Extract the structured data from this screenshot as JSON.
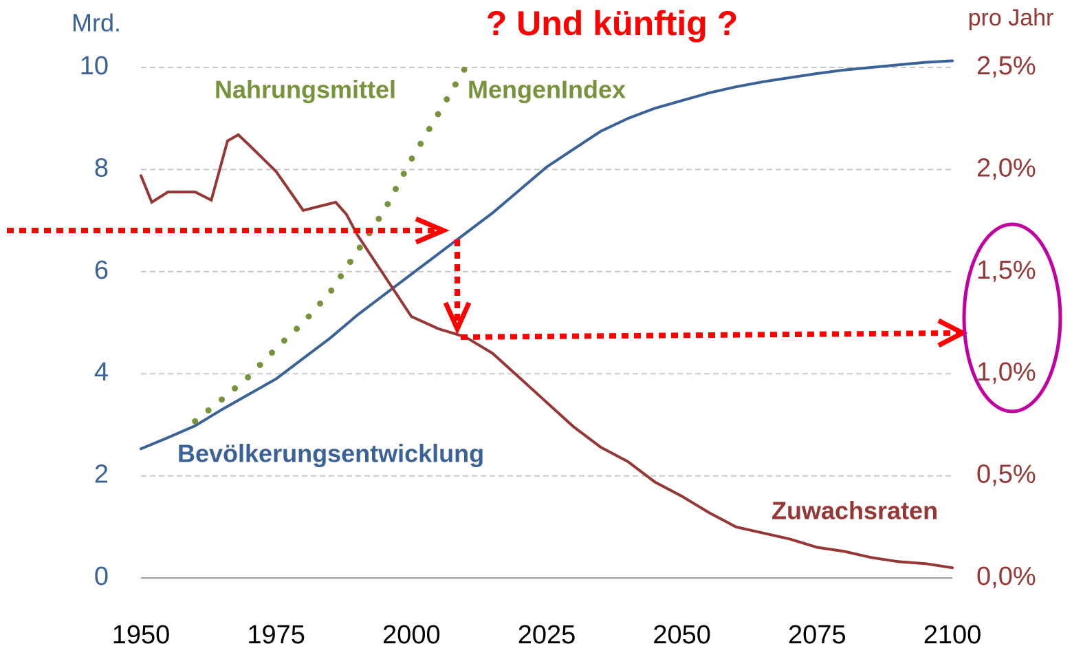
{
  "chart_data": {
    "type": "line",
    "title": "? Und künftig ?",
    "y_label": "Mrd.",
    "y2_label": "pro Jahr",
    "xlim": [
      1950,
      2100
    ],
    "xticks": [
      1950,
      1975,
      2000,
      2025,
      2050,
      2075,
      2100
    ],
    "ylim": [
      0,
      10
    ],
    "yticks": [
      0,
      2,
      4,
      6,
      8,
      10
    ],
    "y2lim": [
      0,
      2.5
    ],
    "y2ticks": [
      {
        "value": 0,
        "label": "0,0%"
      },
      {
        "value": 0.5,
        "label": "0,5%"
      },
      {
        "value": 1,
        "label": "1,0%"
      },
      {
        "value": 1.5,
        "label": "1,5%"
      },
      {
        "value": 2,
        "label": "2,0%"
      },
      {
        "value": 2.5,
        "label": "2,5%"
      }
    ],
    "grid": true,
    "series": [
      {
        "name": "Bevölkerungsentwicklung",
        "color": "#3b6296",
        "style": "solid",
        "x": [
          1950,
          1955,
          1960,
          1965,
          1970,
          1975,
          1980,
          1985,
          1990,
          1995,
          2000,
          2005,
          2010,
          2015,
          2020,
          2025,
          2030,
          2035,
          2040,
          2045,
          2050,
          2055,
          2060,
          2065,
          2070,
          2075,
          2080,
          2085,
          2090,
          2095,
          2100
        ],
        "values": [
          2.53,
          2.75,
          2.98,
          3.3,
          3.6,
          3.9,
          4.3,
          4.7,
          5.15,
          5.55,
          5.95,
          6.35,
          6.75,
          7.15,
          7.6,
          8.05,
          8.4,
          8.75,
          9.0,
          9.2,
          9.35,
          9.5,
          9.62,
          9.72,
          9.8,
          9.88,
          9.95,
          10.0,
          10.05,
          10.1,
          10.13
        ]
      },
      {
        "name": "Zuwachsraten",
        "color": "#953735",
        "style": "solid",
        "axis": "y2",
        "x": [
          1950,
          1952,
          1955,
          1958,
          1960,
          1963,
          1966,
          1968,
          1970,
          1975,
          1980,
          1983,
          1986,
          1988,
          1990,
          1995,
          2000,
          2005,
          2010,
          2015,
          2020,
          2025,
          2030,
          2035,
          2040,
          2045,
          2050,
          2055,
          2060,
          2065,
          2070,
          2075,
          2080,
          2085,
          2090,
          2095,
          2100
        ],
        "values": [
          1.97,
          1.84,
          1.89,
          1.89,
          1.89,
          1.85,
          2.14,
          2.17,
          2.12,
          1.99,
          1.8,
          1.82,
          1.84,
          1.78,
          1.68,
          1.48,
          1.28,
          1.22,
          1.18,
          1.1,
          0.98,
          0.86,
          0.74,
          0.64,
          0.57,
          0.47,
          0.4,
          0.32,
          0.25,
          0.22,
          0.19,
          0.15,
          0.13,
          0.1,
          0.08,
          0.07,
          0.05
        ]
      },
      {
        "name_parts": [
          "Nahrungsmittel",
          "MengenIndex"
        ],
        "color": "#77933c",
        "style": "dotted",
        "x": [
          1960,
          1965,
          1970,
          1975,
          1980,
          1985,
          1990,
          1995,
          2000,
          2005,
          2010
        ],
        "values": [
          3.07,
          3.5,
          3.95,
          4.5,
          5.0,
          5.6,
          6.4,
          7.2,
          8.2,
          9.1,
          10.0
        ]
      }
    ]
  }
}
